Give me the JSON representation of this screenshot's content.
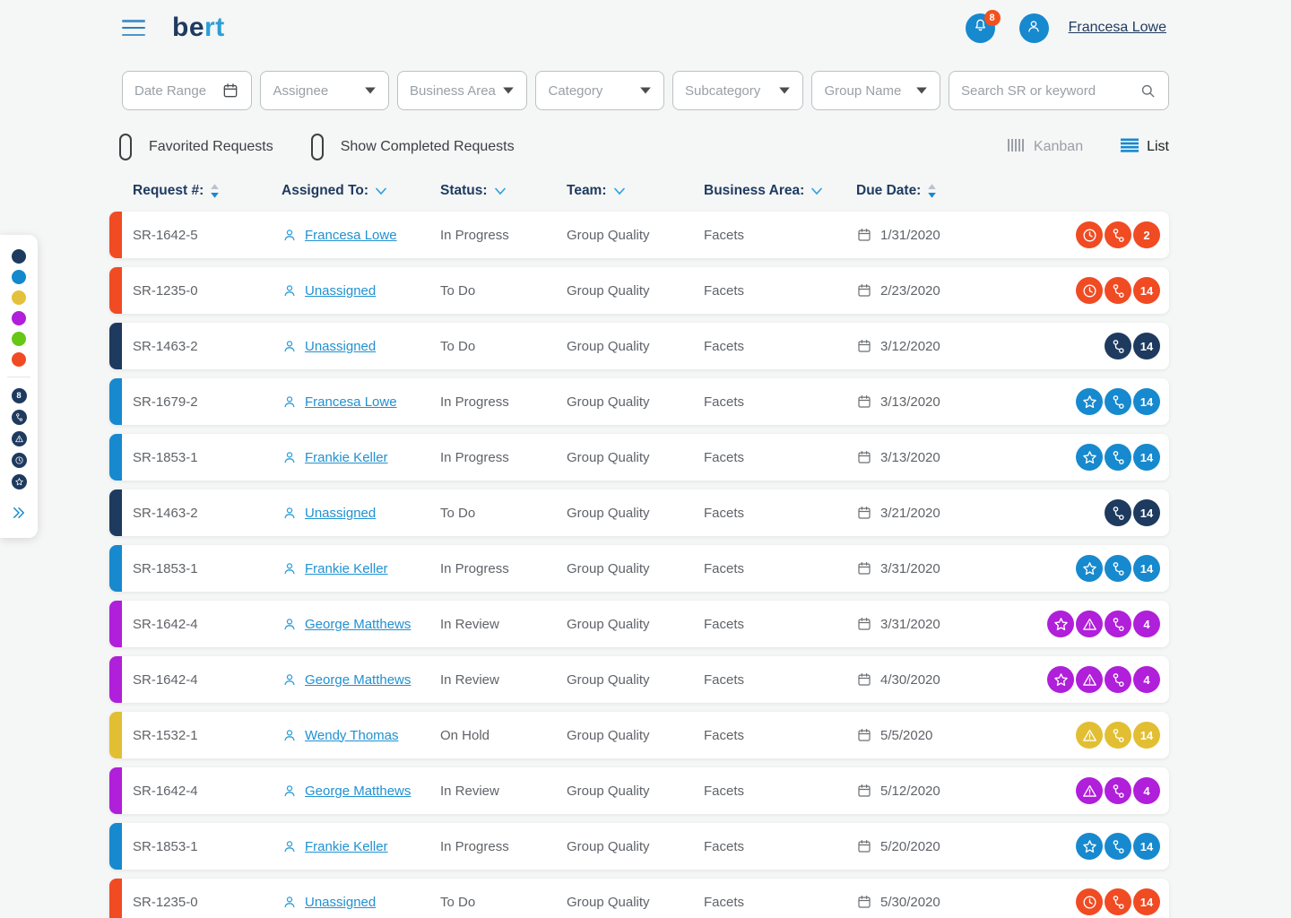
{
  "app": {
    "logo_primary": "be",
    "logo_accent": "rt",
    "notification_count": "8",
    "user_name": "Francesa Lowe"
  },
  "filters": {
    "dropdowns": [
      {
        "label": "Date Range",
        "icon": "calendar-icon",
        "w": "w150"
      },
      {
        "label": "Assignee",
        "icon": "caret-down-icon",
        "w": "w148"
      },
      {
        "label": "Business Area",
        "icon": "caret-down-icon",
        "w": "w150"
      },
      {
        "label": "Category",
        "icon": "caret-down-icon",
        "w": "w148"
      },
      {
        "label": "Subcategory",
        "icon": "caret-down-icon",
        "w": "w151"
      },
      {
        "label": "Group Name",
        "icon": "caret-down-icon",
        "w": "w148"
      }
    ],
    "search_placeholder": "Search SR or keyword"
  },
  "toolbar": {
    "favorited_label": "Favorited Requests",
    "completed_label": "Show Completed Requests",
    "kanban_label": "Kanban",
    "list_label": "List"
  },
  "table": {
    "columns": [
      {
        "label": "Request #:",
        "sort": "updown",
        "cls": "col-id"
      },
      {
        "label": "Assigned To:",
        "sort": "chevron",
        "cls": "col-assignee"
      },
      {
        "label": "Status:",
        "sort": "chevron",
        "cls": "col-status"
      },
      {
        "label": "Team:",
        "sort": "chevron",
        "cls": "col-team"
      },
      {
        "label": "Business Area:",
        "sort": "chevron",
        "cls": "col-ba"
      },
      {
        "label": "Due Date:",
        "sort": "updown",
        "cls": "col-date"
      }
    ],
    "rows": [
      {
        "id": "SR-1642-5",
        "assignee": "Francesa Lowe",
        "status": "In Progress",
        "team": "Group Quality",
        "business_area": "Facets",
        "due_date": "1/31/2020",
        "color": "red",
        "icons": [
          "clock-icon",
          "branch-icon"
        ],
        "badge": "2"
      },
      {
        "id": "SR-1235-0",
        "assignee": "Unassigned",
        "status": "To Do",
        "team": "Group Quality",
        "business_area": "Facets",
        "due_date": "2/23/2020",
        "color": "red",
        "icons": [
          "clock-icon",
          "branch-icon"
        ],
        "badge": "14"
      },
      {
        "id": "SR-1463-2",
        "assignee": "Unassigned",
        "status": "To Do",
        "team": "Group Quality",
        "business_area": "Facets",
        "due_date": "3/12/2020",
        "color": "navy",
        "icons": [
          "branch-icon"
        ],
        "badge": "14"
      },
      {
        "id": "SR-1679-2",
        "assignee": "Francesa Lowe",
        "status": "In Progress",
        "team": "Group Quality",
        "business_area": "Facets",
        "due_date": "3/13/2020",
        "color": "blue",
        "icons": [
          "star-icon",
          "branch-icon"
        ],
        "badge": "14"
      },
      {
        "id": "SR-1853-1",
        "assignee": "Frankie Keller",
        "status": "In Progress",
        "team": "Group Quality",
        "business_area": "Facets",
        "due_date": "3/13/2020",
        "color": "blue",
        "icons": [
          "star-icon",
          "branch-icon"
        ],
        "badge": "14"
      },
      {
        "id": "SR-1463-2",
        "assignee": "Unassigned",
        "status": "To Do",
        "team": "Group Quality",
        "business_area": "Facets",
        "due_date": "3/21/2020",
        "color": "navy",
        "icons": [
          "branch-icon"
        ],
        "badge": "14"
      },
      {
        "id": "SR-1853-1",
        "assignee": "Frankie Keller",
        "status": "In Progress",
        "team": "Group Quality",
        "business_area": "Facets",
        "due_date": "3/31/2020",
        "color": "blue",
        "icons": [
          "star-icon",
          "branch-icon"
        ],
        "badge": "14"
      },
      {
        "id": "SR-1642-4",
        "assignee": "George Matthews",
        "status": "In Review",
        "team": "Group Quality",
        "business_area": "Facets",
        "due_date": "3/31/2020",
        "color": "purple",
        "icons": [
          "star-icon",
          "warning-icon",
          "branch-icon"
        ],
        "badge": "4"
      },
      {
        "id": "SR-1642-4",
        "assignee": "George Matthews",
        "status": "In Review",
        "team": "Group Quality",
        "business_area": "Facets",
        "due_date": "4/30/2020",
        "color": "purple",
        "icons": [
          "star-icon",
          "warning-icon",
          "branch-icon"
        ],
        "badge": "4"
      },
      {
        "id": "SR-1532-1",
        "assignee": "Wendy Thomas",
        "status": "On Hold",
        "team": "Group Quality",
        "business_area": "Facets",
        "due_date": "5/5/2020",
        "color": "yellow",
        "icons": [
          "warning-icon",
          "branch-icon"
        ],
        "badge": "14"
      },
      {
        "id": "SR-1642-4",
        "assignee": "George Matthews",
        "status": "In Review",
        "team": "Group Quality",
        "business_area": "Facets",
        "due_date": "5/12/2020",
        "color": "purple",
        "icons": [
          "warning-icon",
          "branch-icon"
        ],
        "badge": "4"
      },
      {
        "id": "SR-1853-1",
        "assignee": "Frankie Keller",
        "status": "In Progress",
        "team": "Group Quality",
        "business_area": "Facets",
        "due_date": "5/20/2020",
        "color": "blue",
        "icons": [
          "star-icon",
          "branch-icon"
        ],
        "badge": "14"
      },
      {
        "id": "SR-1235-0",
        "assignee": "Unassigned",
        "status": "To Do",
        "team": "Group Quality",
        "business_area": "Facets",
        "due_date": "5/30/2020",
        "color": "red",
        "icons": [
          "clock-icon",
          "branch-icon"
        ],
        "badge": "14"
      }
    ]
  },
  "legend": {
    "dot_colors": [
      "#1e3a5f",
      "#1189cc",
      "#e3c13a",
      "#b01fd9",
      "#66c716",
      "#f04b23"
    ],
    "badge_value": "8",
    "icon_names": [
      "branch-icon",
      "warning-icon",
      "clock-icon",
      "star-icon"
    ]
  },
  "colors": {
    "red": "#f04b23",
    "navy": "#1e3a5f",
    "blue": "#1789ce",
    "purple": "#b01fd9",
    "yellow": "#e2be33",
    "accent_blue": "#1789ce"
  }
}
